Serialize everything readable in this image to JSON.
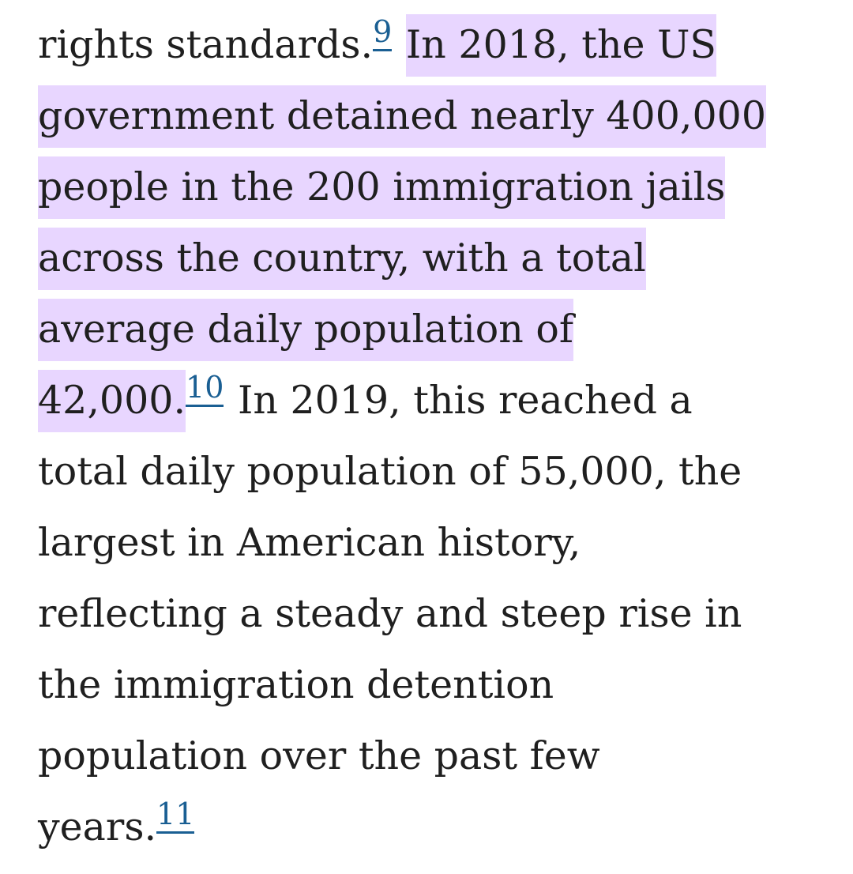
{
  "paragraph": {
    "lines": [
      {
        "segments": [
          {
            "kind": "text",
            "text": "rights standards."
          },
          {
            "kind": "ref",
            "text": "9"
          },
          {
            "kind": "text",
            "text": " "
          },
          {
            "kind": "highlight",
            "text": "In 2018, the US"
          }
        ]
      },
      {
        "segments": [
          {
            "kind": "highlight",
            "text": "government detained nearly 400,000"
          }
        ]
      },
      {
        "segments": [
          {
            "kind": "highlight",
            "text": "people in the 200 immigration jails"
          }
        ]
      },
      {
        "segments": [
          {
            "kind": "highlight",
            "text": "across the country, with a total"
          }
        ]
      },
      {
        "segments": [
          {
            "kind": "highlight",
            "text": "average daily population of"
          }
        ]
      },
      {
        "segments": [
          {
            "kind": "highlight",
            "text": "42,000."
          },
          {
            "kind": "ref",
            "text": "10"
          },
          {
            "kind": "text",
            "text": " In 2019, this reached a"
          }
        ]
      },
      {
        "segments": [
          {
            "kind": "text",
            "text": "total daily population of 55,000, the"
          }
        ]
      },
      {
        "segments": [
          {
            "kind": "text",
            "text": "largest in American history,"
          }
        ]
      },
      {
        "segments": [
          {
            "kind": "text",
            "text": "reflecting a steady and steep rise in"
          }
        ]
      },
      {
        "segments": [
          {
            "kind": "text",
            "text": "the immigration detention"
          }
        ]
      },
      {
        "segments": [
          {
            "kind": "text",
            "text": "population over the past few"
          }
        ]
      },
      {
        "segments": [
          {
            "kind": "text",
            "text": "years."
          },
          {
            "kind": "ref",
            "text": "11"
          }
        ]
      }
    ]
  },
  "colors": {
    "text": "#1f1f1f",
    "highlight": "#e8d6ff",
    "link": "#1a5f93",
    "background": "#ffffff"
  }
}
